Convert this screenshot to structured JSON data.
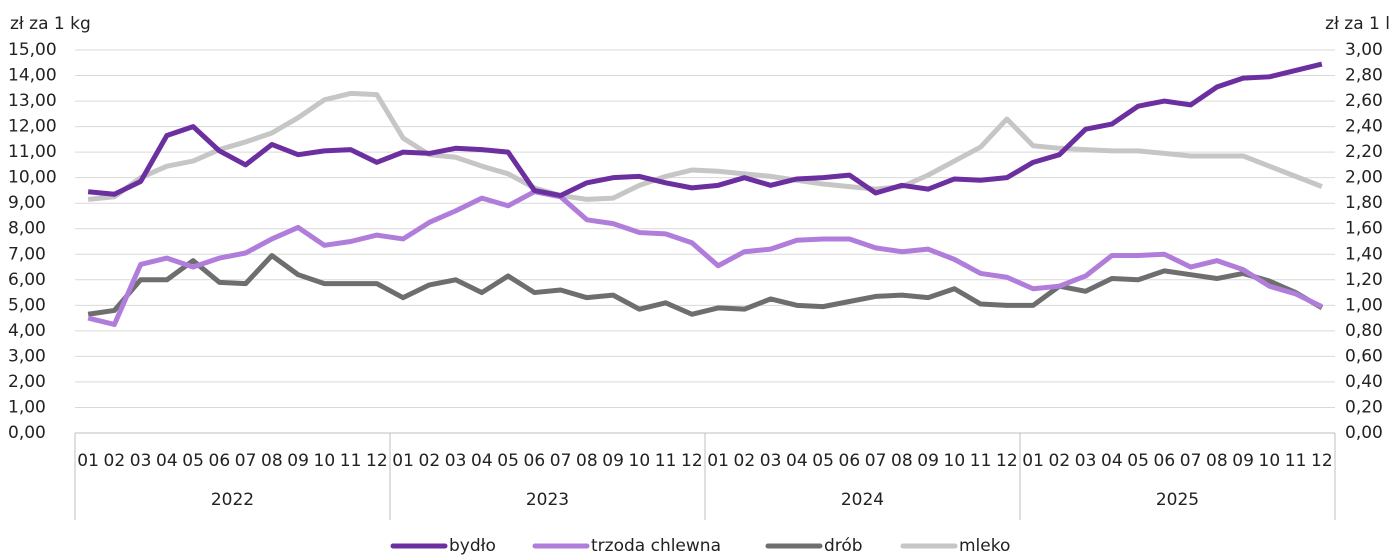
{
  "chart_data": {
    "type": "line",
    "y_label": "zł za 1 kg",
    "y2_label": "zł za 1 l",
    "categories": [
      "01",
      "02",
      "03",
      "04",
      "05",
      "06",
      "07",
      "08",
      "09",
      "10",
      "11",
      "12",
      "01",
      "02",
      "03",
      "04",
      "05",
      "06",
      "07",
      "08",
      "09",
      "10",
      "11",
      "12",
      "01",
      "02",
      "03",
      "04",
      "05",
      "06",
      "07",
      "08",
      "09",
      "10",
      "11",
      "12",
      "01",
      "02",
      "03",
      "04",
      "05",
      "06",
      "07",
      "08",
      "09",
      "10",
      "11",
      "12"
    ],
    "x_groups": [
      "2022",
      "2023",
      "2024",
      "2025"
    ],
    "ylim": [
      0,
      15
    ],
    "yticks": [
      {
        "value": 0,
        "label": "0,00"
      },
      {
        "value": 1,
        "label": "1,00"
      },
      {
        "value": 2,
        "label": "2,00"
      },
      {
        "value": 3,
        "label": "3,00"
      },
      {
        "value": 4,
        "label": "4,00"
      },
      {
        "value": 5,
        "label": "5,00"
      },
      {
        "value": 6,
        "label": "6,00"
      },
      {
        "value": 7,
        "label": "7,00"
      },
      {
        "value": 8,
        "label": "8,00"
      },
      {
        "value": 9,
        "label": "9,00"
      },
      {
        "value": 10,
        "label": "10,00"
      },
      {
        "value": 11,
        "label": "11,00"
      },
      {
        "value": 12,
        "label": "12,00"
      },
      {
        "value": 13,
        "label": "13,00"
      },
      {
        "value": 14,
        "label": "14,00"
      },
      {
        "value": 15,
        "label": "15,00"
      }
    ],
    "y2lim": [
      0,
      3
    ],
    "y2ticks": [
      {
        "value": 0,
        "label": "0,00"
      },
      {
        "value": 0.2,
        "label": "0,20"
      },
      {
        "value": 0.4,
        "label": "0,40"
      },
      {
        "value": 0.6,
        "label": "0,60"
      },
      {
        "value": 0.8,
        "label": "0,80"
      },
      {
        "value": 1,
        "label": "1,00"
      },
      {
        "value": 1.2,
        "label": "1,20"
      },
      {
        "value": 1.4,
        "label": "1,40"
      },
      {
        "value": 1.6,
        "label": "1,60"
      },
      {
        "value": 1.8,
        "label": "1,80"
      },
      {
        "value": 2,
        "label": "2,00"
      },
      {
        "value": 2.2,
        "label": "2,20"
      },
      {
        "value": 2.4,
        "label": "2,40"
      },
      {
        "value": 2.6,
        "label": "2,60"
      },
      {
        "value": 2.8,
        "label": "2,80"
      },
      {
        "value": 3,
        "label": "3,00"
      }
    ],
    "grid": true,
    "legend": "bottom",
    "series": [
      {
        "name": "bydło",
        "color": "#6b2fa0",
        "values": [
          9.45,
          9.35,
          9.85,
          11.65,
          12.0,
          11.05,
          10.5,
          11.3,
          10.9,
          11.05,
          11.1,
          10.6,
          11.0,
          10.95,
          11.15,
          11.1,
          11.0,
          9.5,
          9.3,
          9.8,
          10.0,
          10.05,
          9.8,
          9.6,
          9.7,
          10.0,
          9.7,
          9.95,
          10.0,
          10.1,
          9.4,
          9.7,
          9.55,
          9.95,
          9.9,
          10.0,
          10.6,
          10.9,
          11.9,
          12.1,
          12.8,
          13.0,
          12.85,
          13.55,
          13.9,
          13.95,
          14.2,
          14.45
        ]
      },
      {
        "name": "trzoda chlewna",
        "color": "#b07ddb",
        "values": [
          4.5,
          4.25,
          6.6,
          6.85,
          6.5,
          6.85,
          7.05,
          7.6,
          8.05,
          7.35,
          7.5,
          7.75,
          7.6,
          8.25,
          8.7,
          9.2,
          8.9,
          9.45,
          9.25,
          8.35,
          8.2,
          7.85,
          7.8,
          7.45,
          6.55,
          7.1,
          7.2,
          7.55,
          7.6,
          7.6,
          7.25,
          7.1,
          7.2,
          6.8,
          6.25,
          6.1,
          5.65,
          5.75,
          6.15,
          6.95,
          6.95,
          7.0,
          6.5,
          6.75,
          6.4,
          5.75,
          5.45,
          4.95
        ]
      },
      {
        "name": "drób",
        "color": "#6e6e6e",
        "values": [
          4.65,
          4.8,
          6.0,
          6.0,
          6.75,
          5.9,
          5.85,
          6.95,
          6.2,
          5.85,
          5.85,
          5.85,
          5.3,
          5.8,
          6.0,
          5.5,
          6.15,
          5.5,
          5.6,
          5.3,
          5.4,
          4.85,
          5.1,
          4.65,
          4.9,
          4.85,
          5.25,
          5.0,
          4.95,
          5.15,
          5.35,
          5.4,
          5.3,
          5.65,
          5.05,
          5.0,
          5.0,
          5.75,
          5.55,
          6.05,
          6.0,
          6.35,
          6.2,
          6.05,
          6.25,
          5.95,
          5.5,
          4.9
        ]
      },
      {
        "name": "mleko",
        "color": "#c6c6c6",
        "axis": "y2",
        "values": [
          1.83,
          1.85,
          2.0,
          2.09,
          2.13,
          2.22,
          2.28,
          2.35,
          2.47,
          2.61,
          2.66,
          2.65,
          2.31,
          2.18,
          2.16,
          2.09,
          2.03,
          1.92,
          1.86,
          1.83,
          1.84,
          1.94,
          2.01,
          2.06,
          2.05,
          2.03,
          2.01,
          1.98,
          1.95,
          1.93,
          1.91,
          1.93,
          2.02,
          2.13,
          2.24,
          2.46,
          2.25,
          2.23,
          2.22,
          2.21,
          2.21,
          2.19,
          2.17,
          2.17,
          2.17,
          2.09,
          2.01,
          1.93
        ]
      }
    ]
  }
}
